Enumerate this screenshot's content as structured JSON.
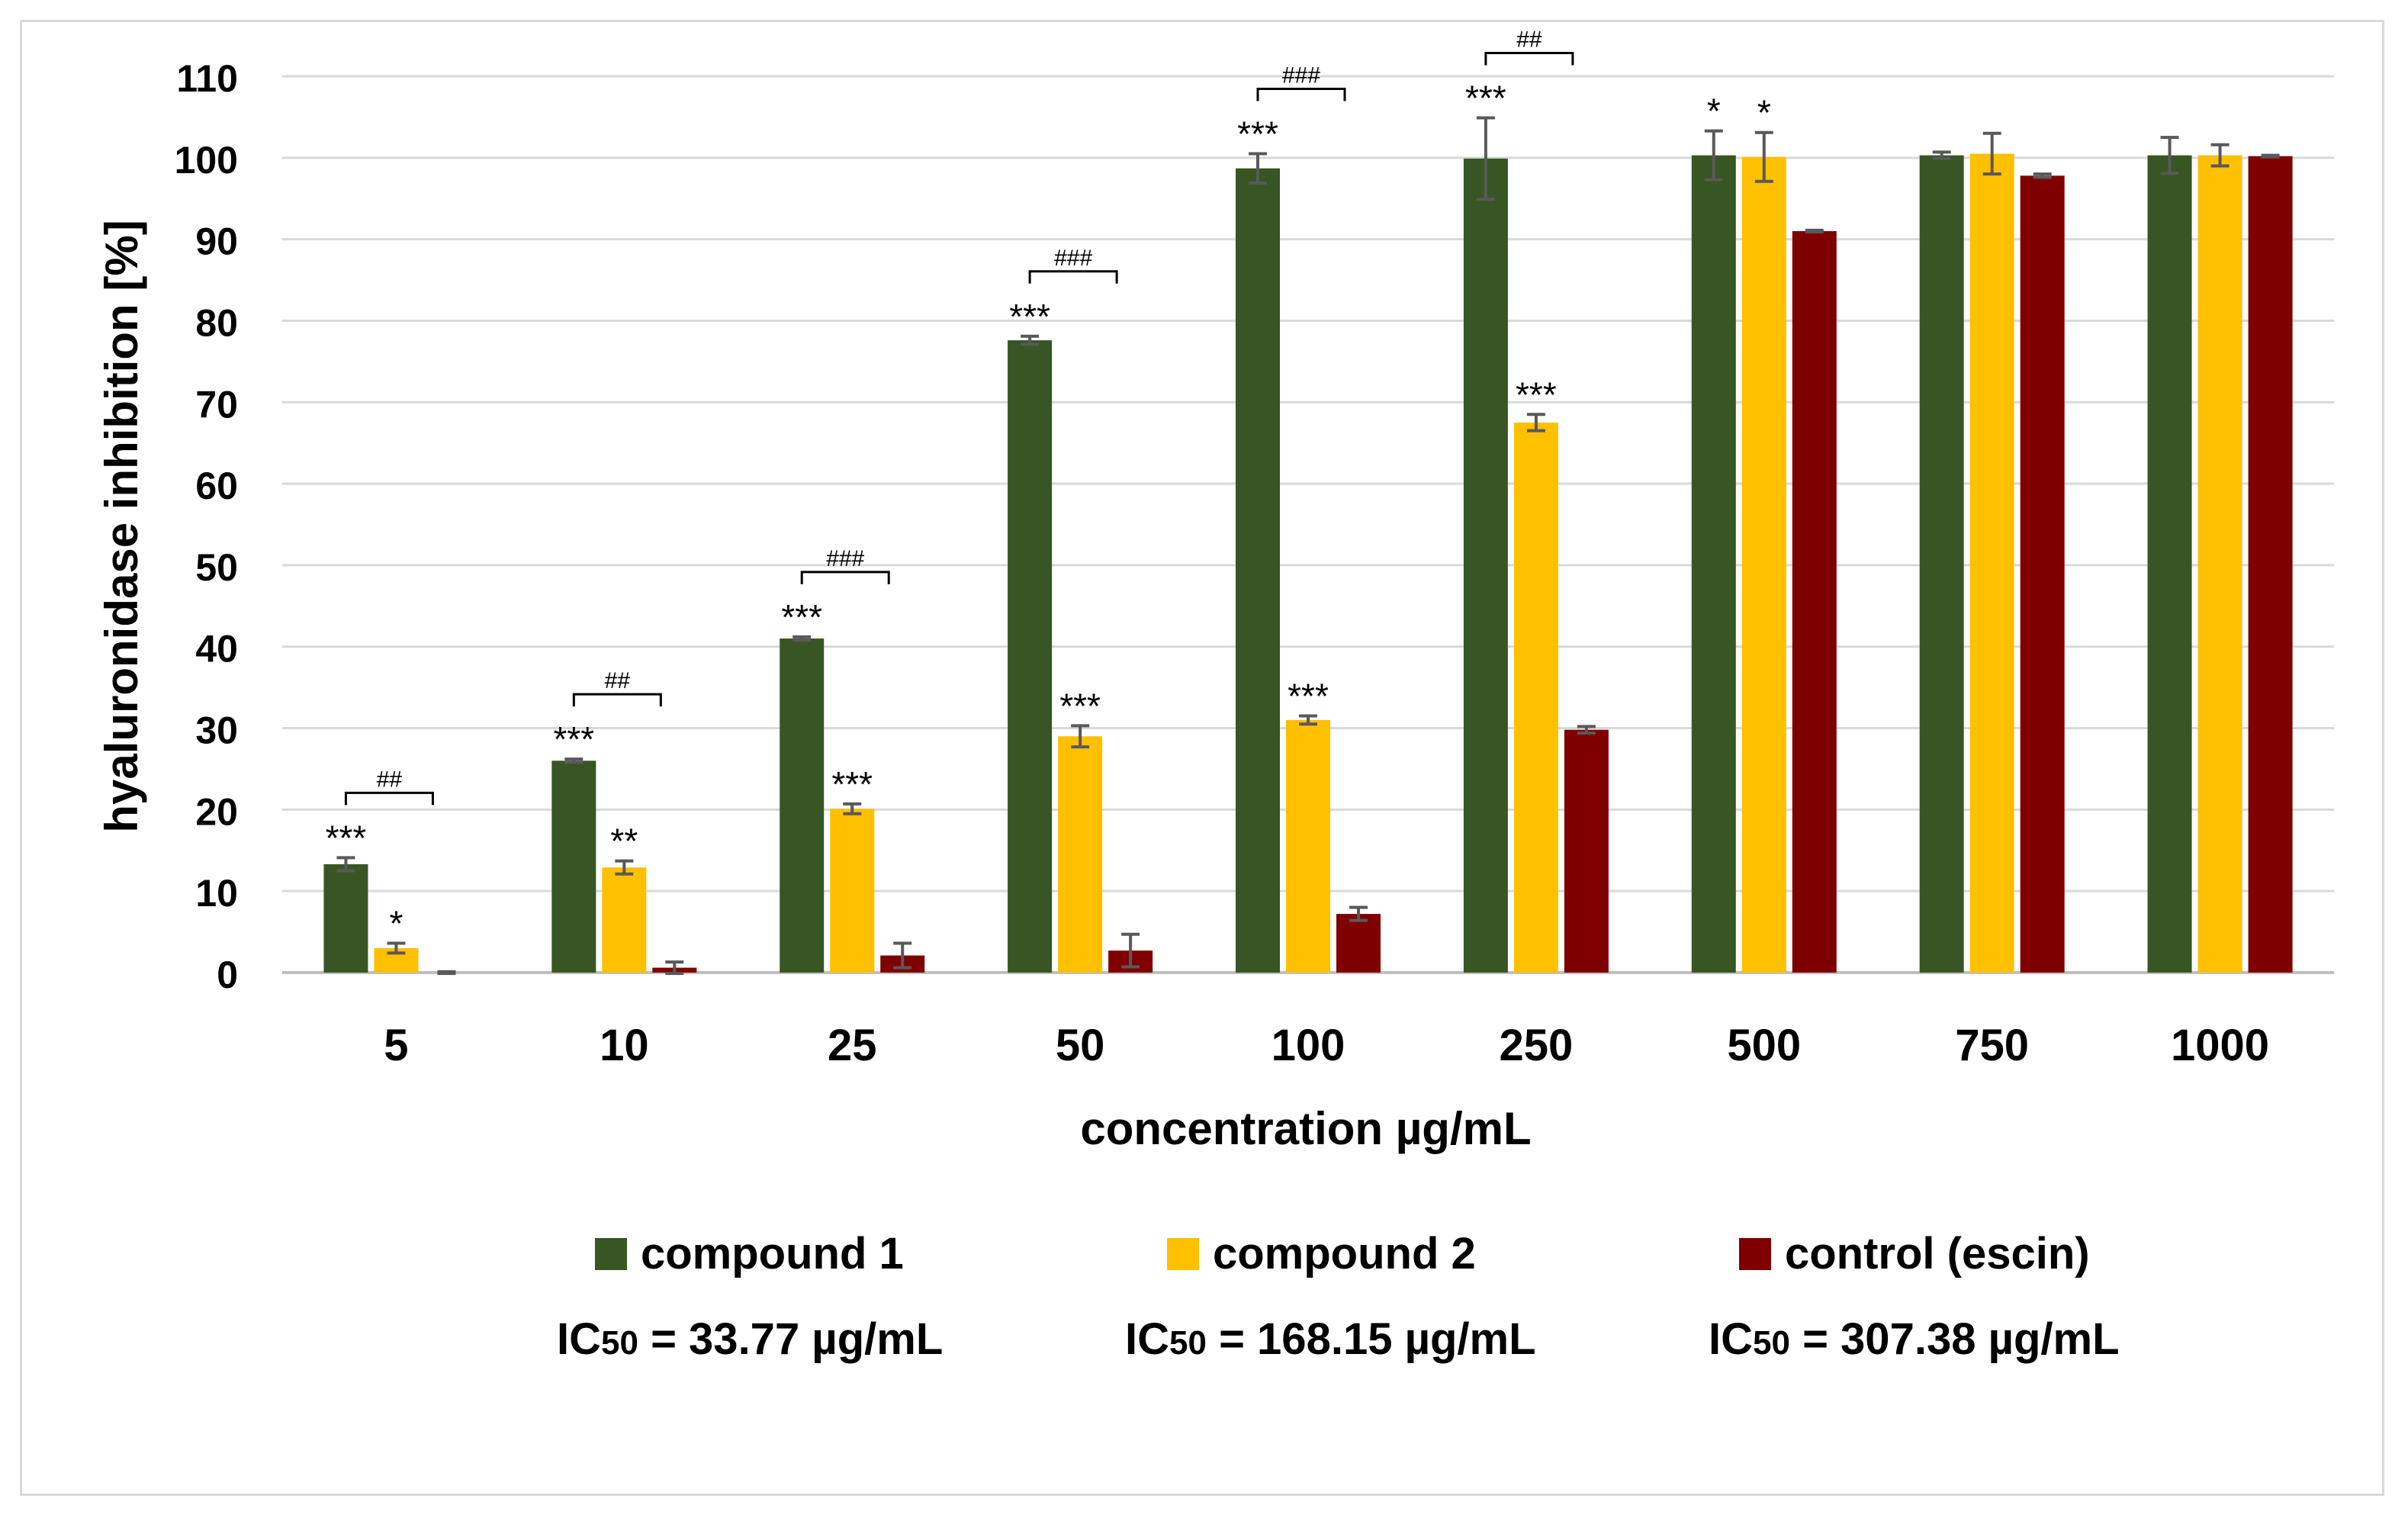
{
  "chart_data": {
    "type": "bar",
    "title": "",
    "xlabel": "concentration µg/mL",
    "ylabel": "hyaluronidase inhibition [%]",
    "ylim": [
      0,
      110
    ],
    "yticks": [
      0,
      10,
      20,
      30,
      40,
      50,
      60,
      70,
      80,
      90,
      100,
      110
    ],
    "categories": [
      "5",
      "10",
      "25",
      "50",
      "100",
      "250",
      "500",
      "750",
      "1000"
    ],
    "series": [
      {
        "name": "compound 1",
        "color": "#375623",
        "values": [
          13.3,
          26.0,
          41.0,
          77.6,
          98.7,
          99.9,
          100.3,
          100.3,
          100.3
        ],
        "errors": [
          0.8,
          0.2,
          0.2,
          0.5,
          1.8,
          5.0,
          3.0,
          0.4,
          2.2
        ],
        "sig": [
          "***",
          "***",
          "***",
          "***",
          "***",
          "***",
          "*",
          "",
          ""
        ]
      },
      {
        "name": "compound 2",
        "color": "#ffc000",
        "values": [
          3.0,
          12.9,
          20.1,
          29.0,
          31.0,
          67.5,
          100.1,
          100.5,
          100.3
        ],
        "errors": [
          0.6,
          0.8,
          0.6,
          1.3,
          0.5,
          1.0,
          3.0,
          2.5,
          1.3
        ],
        "sig": [
          "*",
          "**",
          "***",
          "***",
          "***",
          "***",
          "*",
          "",
          ""
        ]
      },
      {
        "name": "control (escin)",
        "color": "#7f0000",
        "values": [
          0.0,
          0.6,
          2.1,
          2.7,
          7.2,
          29.8,
          91.0,
          97.8,
          100.2
        ],
        "errors": [
          0.1,
          0.7,
          1.5,
          2.0,
          0.8,
          0.4,
          0.1,
          0.2,
          0.1
        ],
        "sig": [
          "",
          "",
          "",
          "",
          "",
          "",
          "",
          "",
          ""
        ]
      }
    ],
    "brackets": [
      "##",
      "##",
      "###",
      "###",
      "###",
      "##",
      "",
      "",
      ""
    ],
    "legend_position": "bottom"
  },
  "legend": {
    "items": [
      {
        "label": "compound 1",
        "color": "#375623"
      },
      {
        "label": "compound 2",
        "color": "#ffc000"
      },
      {
        "label": "control (escin)",
        "color": "#7f0000"
      }
    ]
  },
  "ic50": [
    {
      "prefix": "IC",
      "sub": "50",
      "text": " = 33.77 µg/mL"
    },
    {
      "prefix": "IC",
      "sub": "50",
      "text": " = 168.15 µg/mL"
    },
    {
      "prefix": "IC",
      "sub": "50",
      "text": " = 307.38 µg/mL"
    }
  ]
}
